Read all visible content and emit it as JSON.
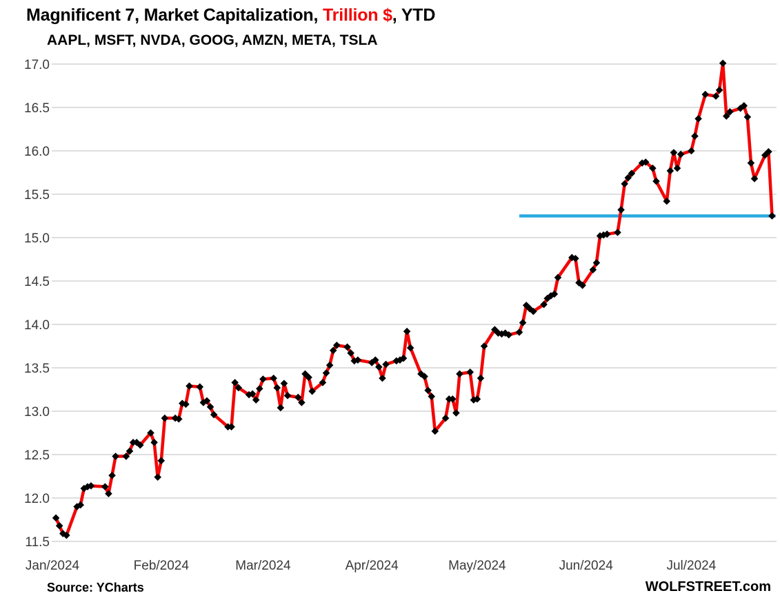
{
  "title": {
    "prefix": "Magnificent 7, Market Capitalization, ",
    "highlight": "Trillion $",
    "suffix": ", YTD"
  },
  "subtitle": "AAPL, MSFT, NVDA, GOOG, AMZN, META, TSLA",
  "footer": {
    "source": "Source: YCharts",
    "branding": "WOLFSTREET.com"
  },
  "colors": {
    "series_line": "#f20808",
    "marker": "#000000",
    "reference_line": "#29a9e1",
    "gridline": "#d9d9d9",
    "title_highlight": "#f20808",
    "axis_text": "#3a3a3a",
    "text": "#000000",
    "background": "#ffffff"
  },
  "chart_data": {
    "type": "line",
    "title": "Magnificent 7, Market Capitalization, Trillion $, YTD",
    "subtitle": "AAPL, MSFT, NVDA, GOOG, AMZN, META, TSLA",
    "ylim": [
      11.5,
      17.0
    ],
    "ytick_step": 0.5,
    "grid": "horizontal",
    "legend": "none",
    "x_ticks": [
      {
        "label": "Jan/2024",
        "day_offset": 0
      },
      {
        "label": "Feb/2024",
        "day_offset": 31
      },
      {
        "label": "Mar/2024",
        "day_offset": 60
      },
      {
        "label": "Apr/2024",
        "day_offset": 91
      },
      {
        "label": "May/2024",
        "day_offset": 121
      },
      {
        "label": "Jun/2024",
        "day_offset": 152
      },
      {
        "label": "Jul/2024",
        "day_offset": 182
      }
    ],
    "reference_line": {
      "value": 15.25,
      "start_day_offset": 133,
      "end_day_offset": 206,
      "note": "horizontal line at level of final data point"
    },
    "series": [
      {
        "name": "Magnificent 7 combined market capitalization, trillion $",
        "marker": "diamond",
        "dates": [
          "Jan 2",
          "Jan 3",
          "Jan 4",
          "Jan 5",
          "Jan 8",
          "Jan 9",
          "Jan 10",
          "Jan 11",
          "Jan 12",
          "Jan 16",
          "Jan 17",
          "Jan 18",
          "Jan 19",
          "Jan 22",
          "Jan 23",
          "Jan 24",
          "Jan 25",
          "Jan 26",
          "Jan 29",
          "Jan 30",
          "Jan 31",
          "Feb 1",
          "Feb 2",
          "Feb 5",
          "Feb 6",
          "Feb 7",
          "Feb 8",
          "Feb 9",
          "Feb 12",
          "Feb 13",
          "Feb 14",
          "Feb 15",
          "Feb 16",
          "Feb 20",
          "Feb 21",
          "Feb 22",
          "Feb 23",
          "Feb 26",
          "Feb 27",
          "Feb 28",
          "Feb 29",
          "Mar 1",
          "Mar 4",
          "Mar 5",
          "Mar 6",
          "Mar 7",
          "Mar 8",
          "Mar 11",
          "Mar 12",
          "Mar 13",
          "Mar 14",
          "Mar 15",
          "Mar 18",
          "Mar 19",
          "Mar 20",
          "Mar 21",
          "Mar 22",
          "Mar 25",
          "Mar 26",
          "Mar 27",
          "Mar 28",
          "Apr 1",
          "Apr 2",
          "Apr 3",
          "Apr 4",
          "Apr 5",
          "Apr 8",
          "Apr 9",
          "Apr 10",
          "Apr 11",
          "Apr 12",
          "Apr 15",
          "Apr 16",
          "Apr 17",
          "Apr 18",
          "Apr 19",
          "Apr 22",
          "Apr 23",
          "Apr 24",
          "Apr 25",
          "Apr 26",
          "Apr 29",
          "Apr 30",
          "May 1",
          "May 2",
          "May 3",
          "May 6",
          "May 7",
          "May 8",
          "May 9",
          "May 10",
          "May 13",
          "May 14",
          "May 15",
          "May 16",
          "May 17",
          "May 20",
          "May 21",
          "May 22",
          "May 23",
          "May 24",
          "May 28",
          "May 29",
          "May 30",
          "May 31",
          "Jun 3",
          "Jun 4",
          "Jun 5",
          "Jun 6",
          "Jun 7",
          "Jun 10",
          "Jun 11",
          "Jun 12",
          "Jun 13",
          "Jun 14",
          "Jun 17",
          "Jun 18",
          "Jun 20",
          "Jun 21",
          "Jun 24",
          "Jun 25",
          "Jun 26",
          "Jun 27",
          "Jun 28",
          "Jul 1",
          "Jul 2",
          "Jul 3",
          "Jul 5",
          "Jul 8",
          "Jul 9",
          "Jul 10",
          "Jul 11",
          "Jul 12",
          "Jul 15",
          "Jul 16",
          "Jul 17",
          "Jul 18",
          "Jul 19",
          "Jul 22",
          "Jul 23",
          "Jul 24"
        ],
        "day_offsets": [
          1,
          2,
          3,
          4,
          7,
          8,
          9,
          10,
          11,
          15,
          16,
          17,
          18,
          21,
          22,
          23,
          24,
          25,
          28,
          29,
          30,
          31,
          32,
          35,
          36,
          37,
          38,
          39,
          42,
          43,
          44,
          45,
          46,
          50,
          51,
          52,
          53,
          56,
          57,
          58,
          59,
          60,
          63,
          64,
          65,
          66,
          67,
          70,
          71,
          72,
          73,
          74,
          77,
          78,
          79,
          80,
          81,
          84,
          85,
          86,
          87,
          91,
          92,
          93,
          94,
          95,
          98,
          99,
          100,
          101,
          102,
          105,
          106,
          107,
          108,
          109,
          112,
          113,
          114,
          115,
          116,
          119,
          120,
          121,
          122,
          123,
          126,
          127,
          128,
          129,
          130,
          133,
          134,
          135,
          136,
          137,
          140,
          141,
          142,
          143,
          144,
          148,
          149,
          150,
          151,
          154,
          155,
          156,
          157,
          158,
          161,
          162,
          163,
          164,
          165,
          168,
          169,
          171,
          172,
          175,
          176,
          177,
          178,
          179,
          182,
          183,
          184,
          186,
          189,
          190,
          191,
          192,
          193,
          196,
          197,
          198,
          199,
          200,
          203,
          204,
          205
        ],
        "values": [
          11.77,
          11.68,
          11.59,
          11.57,
          11.9,
          11.92,
          12.11,
          12.13,
          12.14,
          12.13,
          12.05,
          12.26,
          12.48,
          12.48,
          12.54,
          12.64,
          12.64,
          12.61,
          12.75,
          12.64,
          12.24,
          12.43,
          12.92,
          12.92,
          12.91,
          13.09,
          13.08,
          13.29,
          13.28,
          13.1,
          13.12,
          13.05,
          12.96,
          12.82,
          12.82,
          13.33,
          13.27,
          13.19,
          13.2,
          13.13,
          13.26,
          13.37,
          13.38,
          13.27,
          13.04,
          13.32,
          13.18,
          13.16,
          13.1,
          13.43,
          13.39,
          13.23,
          13.33,
          13.44,
          13.53,
          13.7,
          13.76,
          13.74,
          13.67,
          13.58,
          13.59,
          13.56,
          13.59,
          13.51,
          13.38,
          13.54,
          13.58,
          13.59,
          13.61,
          13.92,
          13.73,
          13.43,
          13.4,
          13.24,
          13.17,
          12.77,
          12.92,
          13.14,
          13.14,
          12.98,
          13.43,
          13.45,
          13.13,
          13.14,
          13.38,
          13.75,
          13.94,
          13.9,
          13.89,
          13.9,
          13.88,
          13.91,
          14.02,
          14.22,
          14.18,
          14.15,
          14.23,
          14.3,
          14.33,
          14.35,
          14.54,
          14.77,
          14.76,
          14.48,
          14.45,
          14.63,
          14.71,
          15.02,
          15.03,
          15.04,
          15.06,
          15.32,
          15.62,
          15.69,
          15.74,
          15.86,
          15.87,
          15.8,
          15.65,
          15.42,
          15.77,
          15.98,
          15.8,
          15.96,
          16.0,
          16.17,
          16.37,
          16.65,
          16.63,
          16.7,
          17.01,
          16.4,
          16.45,
          16.49,
          16.52,
          16.39,
          15.86,
          15.68,
          15.95,
          15.99,
          15.25
        ]
      }
    ]
  }
}
